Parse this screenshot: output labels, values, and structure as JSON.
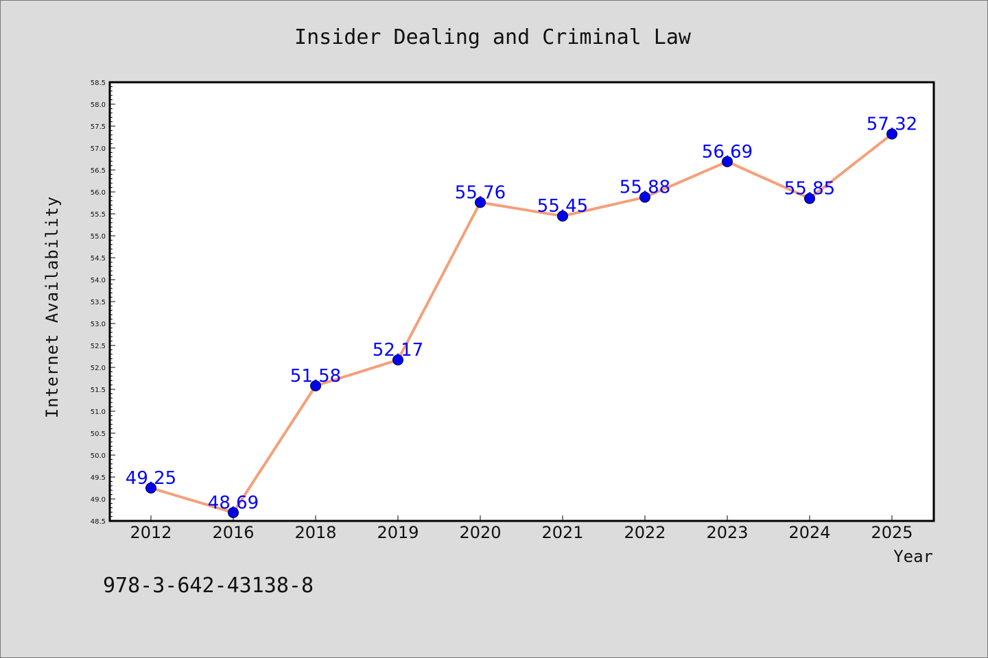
{
  "chart_data": {
    "type": "line",
    "title": "Insider Dealing and Criminal Law",
    "xlabel": "Year",
    "ylabel": "Internet Availability",
    "categories": [
      "2012",
      "2016",
      "2018",
      "2019",
      "2020",
      "2021",
      "2022",
      "2023",
      "2024",
      "2025"
    ],
    "series": [
      {
        "values": [
          49.25,
          48.69,
          51.58,
          52.17,
          55.76,
          55.45,
          55.88,
          56.69,
          55.85,
          57.32
        ],
        "labels": [
          "49.25",
          "48.69",
          "51.58",
          "52.17",
          "55.76",
          "55.45",
          "55.88",
          "56.69",
          "55.85",
          "57.32"
        ]
      }
    ],
    "ylim": [
      48.5,
      58.5
    ],
    "ytick_step": 0.5,
    "ytick_format_decimals": 1,
    "grid": false,
    "line_color": "#f4a07a",
    "marker_color": "#0000ee",
    "label_color": "#0000ff",
    "background_color": "#dcdcdc",
    "plot_background_color": "#ffffff"
  },
  "footer": {
    "text": "978-3-642-43138-8"
  }
}
